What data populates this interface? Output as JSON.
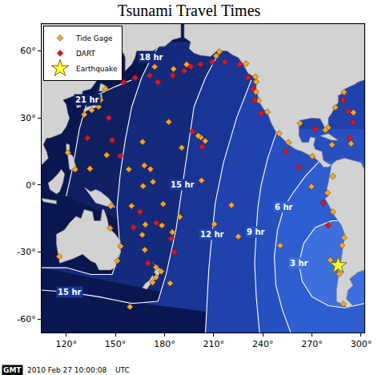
{
  "chart_data": {
    "type": "scatter",
    "title": "Tsunami Travel Times",
    "grid": false,
    "legend": "top-left",
    "xlim": [
      105,
      302
    ],
    "xticks": [
      {
        "value": 120,
        "label": "120°"
      },
      {
        "value": 150,
        "label": "150°"
      },
      {
        "value": 180,
        "label": "180°"
      },
      {
        "value": 210,
        "label": "210°"
      },
      {
        "value": 240,
        "label": "240°"
      },
      {
        "value": 270,
        "label": "270°"
      },
      {
        "value": 300,
        "label": "300°"
      }
    ],
    "ylim": [
      -66,
      72
    ],
    "yticks": [
      {
        "value": -60,
        "label": "-60°"
      },
      {
        "value": -30,
        "label": "-30°"
      },
      {
        "value": 0,
        "label": "0°"
      },
      {
        "value": 30,
        "label": "30°"
      },
      {
        "value": 60,
        "label": "60°"
      }
    ],
    "contours": [
      {
        "color": "#101f62",
        "x": [
          160,
          150,
          141,
          133,
          128,
          124,
          120
        ],
        "y": [
          47,
          44,
          41,
          38,
          25,
          8,
          -5
        ],
        "labels": [
          {
            "text": "21 hr",
            "x": 133,
            "y": 38
          }
        ]
      },
      {
        "color": "#142a7c",
        "x": [
          178,
          172,
          166,
          160,
          156,
          153,
          151,
          152,
          153,
          148,
          135,
          120,
          105
        ],
        "y": [
          64,
          57,
          48,
          35,
          20,
          5,
          -10,
          -22,
          -30,
          -40,
          -40,
          -37,
          -37
        ],
        "labels": [
          {
            "text": "18 hr",
            "x": 172,
            "y": 57
          }
        ]
      },
      {
        "color": "#193596",
        "x": [
          213,
          205,
          198,
          194,
          191,
          187,
          181,
          176,
          160,
          140,
          122,
          105
        ],
        "y": [
          59,
          48,
          35,
          15,
          0,
          -20,
          -40,
          -52,
          -53,
          -50,
          -48,
          -47
        ],
        "labels": [
          {
            "text": "15 hr",
            "x": 191,
            "y": 0
          },
          {
            "text": "15 hr",
            "x": 122,
            "y": -48
          }
        ]
      },
      {
        "color": "#1f42ad",
        "x": [
          233,
          224,
          216,
          211,
          209,
          207,
          206,
          205
        ],
        "y": [
          47,
          30,
          10,
          -8,
          -22,
          -38,
          -52,
          -66
        ],
        "labels": [
          {
            "text": "12 hr",
            "x": 209,
            "y": -22
          }
        ]
      },
      {
        "color": "#2650c0",
        "x": [
          249,
          243,
          239,
          237,
          236,
          235,
          236,
          238
        ],
        "y": [
          25,
          12,
          0,
          -10,
          -21,
          -35,
          -50,
          -66
        ],
        "labels": [
          {
            "text": "9 hr",
            "x": 236,
            "y": -21
          }
        ]
      },
      {
        "color": "#2e5ecf",
        "x": [
          275,
          266,
          258,
          253,
          249,
          247,
          248,
          252,
          257
        ],
        "y": [
          11,
          4,
          -4,
          -10,
          -20,
          -32,
          -45,
          -56,
          -66
        ],
        "labels": [
          {
            "text": "6 hr",
            "x": 253,
            "y": -10
          }
        ]
      },
      {
        "color": "#3d70dc",
        "x": [
          302,
          292,
          282,
          272,
          265,
          262,
          264,
          270,
          280,
          290,
          302
        ],
        "y": [
          -17,
          -16,
          -16,
          -19,
          -26,
          -35,
          -43,
          -50,
          -54,
          -55,
          -53
        ],
        "labels": [
          {
            "text": "3 hr",
            "x": 262,
            "y": -35
          }
        ]
      }
    ],
    "land": [
      {
        "x": [
          282,
          280,
          277,
          276,
          272,
          271,
          272,
          269,
          268,
          264,
          262,
          262,
          263,
          266,
          270,
          275,
          277,
          278,
          280,
          280,
          282,
          284,
          286,
          286,
          290,
          290,
          293,
          296,
          298,
          302,
          302,
          192,
          192,
          196,
          195,
          198,
          202,
          208,
          212,
          218,
          222,
          225,
          228,
          231,
          236,
          236,
          237,
          238,
          240.5,
          243,
          245,
          247,
          249,
          253,
          256,
          260,
          264,
          268,
          272,
          275,
          277,
          280
        ],
        "y": [
          9,
          9.5,
          11,
          15,
          16,
          18,
          21,
          21.5,
          19,
          19,
          22,
          26,
          29,
          29.5,
          30,
          29.7,
          27,
          25,
          25.5,
          30,
          32,
          35,
          37,
          40,
          41.5,
          43,
          44,
          45,
          46,
          47,
          72,
          72,
          66,
          64,
          61,
          59,
          58,
          57.5,
          60,
          60,
          58,
          57,
          54,
          50,
          48,
          43,
          40,
          37,
          34,
          32,
          28,
          25,
          23,
          20,
          18,
          16,
          15,
          13.5,
          12,
          10,
          8,
          8
        ]
      },
      {
        "x": [
          282,
          285,
          290,
          295,
          300,
          302,
          302,
          298,
          293,
          295,
          292,
          291,
          295,
          292,
          290,
          285,
          285,
          286,
          286,
          288,
          289,
          290,
          288,
          284,
          281,
          278,
          280,
          279,
          280,
          281
        ],
        "y": [
          9,
          11,
          12,
          11,
          10,
          7,
          -38,
          -39,
          -42,
          -45,
          -47,
          -51,
          -54,
          -55,
          -54,
          -52,
          -47,
          -42,
          -38,
          -33,
          -28,
          -22,
          -18,
          -14,
          -10,
          -6,
          -5,
          -2,
          1,
          5
        ]
      },
      {
        "x": [
          114,
          114,
          115,
          116,
          120,
          124,
          130,
          135,
          138,
          140,
          144,
          147,
          150,
          151,
          153,
          153,
          150,
          146,
          145,
          143,
          142,
          141,
          137,
          136,
          131,
          129,
          126,
          122,
          119
        ],
        "y": [
          -22,
          -26,
          -31,
          -35,
          -34,
          -33,
          -31,
          -34,
          -35,
          -38,
          -38,
          -38,
          -37,
          -33,
          -30,
          -25,
          -22,
          -19,
          -15,
          -11,
          -11,
          -16,
          -16,
          -12,
          -11,
          -15,
          -14,
          -17,
          -20
        ]
      },
      {
        "x": [
          131,
          135,
          138,
          141,
          146,
          150,
          147,
          143,
          138,
          135
        ],
        "y": [
          -1,
          -3,
          -2,
          -3,
          -6,
          -10,
          -10,
          -9,
          -8,
          -5
        ]
      },
      {
        "x": [
          172.7,
          174.7,
          178.5,
          176.9,
          175.3,
          174.6,
          173.8,
          174.5
        ],
        "y": [
          -34.4,
          -36.8,
          -37.7,
          -39.6,
          -41.6,
          -39.8,
          -39.2,
          -37
        ]
      },
      {
        "x": [
          172.7,
          174.3,
          173.2,
          171.2,
          169.3,
          166.5,
          168.3,
          170.8,
          172.1
        ],
        "y": [
          -40.5,
          -41.7,
          -43.5,
          -44.5,
          -46.6,
          -46,
          -44,
          -42.7,
          -41
        ]
      },
      {
        "x": [
          105,
          190,
          190,
          185,
          180,
          177,
          173,
          163,
          162,
          160,
          156,
          156,
          155,
          150,
          143,
          140,
          141,
          140,
          135,
          130,
          129.5,
          129,
          126.5,
          126,
          125,
          121,
          118,
          120,
          121,
          122,
          120,
          117,
          113,
          110,
          108,
          106,
          108,
          109,
          107,
          105
        ],
        "y": [
          72,
          72,
          66,
          65,
          62,
          62,
          60,
          60,
          57,
          54,
          51,
          57,
          59,
          59,
          59,
          54,
          52,
          48,
          43,
          42,
          37,
          35,
          34.5,
          37,
          40,
          39,
          38,
          36,
          32,
          30,
          26,
          23,
          22,
          21,
          21,
          18,
          15,
          12,
          10.5,
          9
        ]
      },
      {
        "x": [
          130,
          131,
          133,
          136,
          137,
          140,
          140,
          141.5,
          142,
          140.8,
          140,
          137,
          135,
          132
        ],
        "y": [
          31,
          34,
          35,
          35.5,
          37,
          38,
          41,
          41,
          39,
          36,
          35,
          34.5,
          34,
          33
        ]
      },
      {
        "x": [
          140,
          141,
          145,
          143.5
        ],
        "y": [
          42,
          45.5,
          44,
          42
        ]
      },
      {
        "x": [
          109,
          110,
          114,
          116,
          118,
          119,
          117,
          115,
          111
        ],
        "y": [
          1,
          -2,
          -4,
          -3,
          1,
          5,
          7,
          5,
          2
        ]
      },
      {
        "x": [
          120,
          122,
          122,
          124,
          126,
          126,
          122,
          121,
          120
        ],
        "y": [
          18.5,
          18,
          14,
          13,
          8,
          6,
          7,
          13,
          15
        ]
      },
      {
        "x": [
          275,
          280,
          286,
          282,
          277
        ],
        "y": [
          22,
          23,
          20,
          20,
          21.5
        ]
      },
      {
        "x": [
          105,
          114,
          114,
          106
        ],
        "y": [
          -6,
          -7,
          -8.5,
          -7.5
        ]
      }
    ],
    "series": [
      {
        "name": "Tide Gage",
        "color": "#f5a623",
        "marker": "diamond",
        "x": [
          141,
          139.8,
          135.5,
          131,
          144,
          121,
          125.5,
          144.7,
          134.5,
          158.2,
          167.7,
          171.4,
          173,
          166.9,
          179.2,
          159.9,
          147.2,
          168.3,
          166.4,
          178.4,
          184.8,
          189.3,
          210.4,
          220.9,
          225,
          250.6,
          281.2,
          269.7,
          202.6,
          202.1,
          204.9,
          200.6,
          182.6,
          166.6,
          190.5,
          174.8,
          178,
          172.7,
          174.8,
          183.4,
          168,
          151.2,
          153.2,
          146.8,
          115.7,
          158.9,
          289.6,
          288.4,
          286.6,
          289.1,
          282.8,
          279.5,
          282.8,
          270.2,
          255.7,
          250,
          242.8,
          237.5,
          235.8,
          236,
          235.4,
          229.7,
          211.5,
          213.5,
          193.5,
          185.5,
          174,
          279.9,
          284.3,
          289.6,
          295.3,
          293.9,
          282.2,
          278.2,
          262.7
        ],
        "y": [
          38,
          35,
          33.5,
          31.5,
          43,
          14.5,
          7,
          13.4,
          7.3,
          7,
          8.7,
          7.1,
          1.4,
          -0.5,
          -8.5,
          -9.4,
          -9.5,
          -17.7,
          -22.3,
          -18.1,
          -21.1,
          -14.3,
          -17.5,
          -9,
          -23.1,
          -27.1,
          -33.6,
          -0.7,
          2,
          21.3,
          19.7,
          22,
          28.2,
          19.3,
          16.7,
          -41.3,
          -38.7,
          -43.6,
          -36.8,
          -44,
          -29,
          -33.9,
          -27.4,
          -19.3,
          -32,
          -54.5,
          -23.6,
          -27,
          -39.8,
          -53.2,
          -12,
          -3.5,
          3.9,
          12.8,
          19,
          23,
          32.7,
          37.8,
          41.7,
          46.2,
          48.4,
          54.3,
          57.7,
          59.6,
          53.9,
          51.9,
          52.9,
          25.7,
          34.7,
          41.5,
          32.4,
          18.5,
          18,
          24.6,
          27.6
        ]
      },
      {
        "name": "DART",
        "color": "#e0102a",
        "marker": "diamond",
        "x": [
          155,
          162,
          171,
          176,
          185,
          192,
          196,
          202,
          209,
          217,
          226,
          231,
          234,
          235,
          239,
          254,
          262,
          203,
          197,
          146,
          148,
          153,
          133,
          165,
          175,
          184,
          186,
          161,
          170,
          277,
          280,
          289,
          292,
          295,
          293,
          272
        ],
        "y": [
          46,
          48,
          49,
          46,
          49,
          51,
          53,
          54,
          55,
          55,
          54,
          48,
          43,
          38,
          32,
          15,
          8,
          17,
          24,
          30,
          20,
          13,
          21,
          -12,
          -17,
          -24,
          -30,
          -19,
          -35,
          -8,
          -18,
          38,
          33,
          28,
          21,
          25
        ]
      },
      {
        "name": "Earthquake",
        "color": "#ffff33",
        "marker": "star",
        "x": [
          286
        ],
        "y": [
          -36
        ]
      }
    ],
    "footer": {
      "logo": "GMT",
      "timestamp": "2010 Feb 27 10:00:08",
      "zone": "UTC"
    }
  }
}
